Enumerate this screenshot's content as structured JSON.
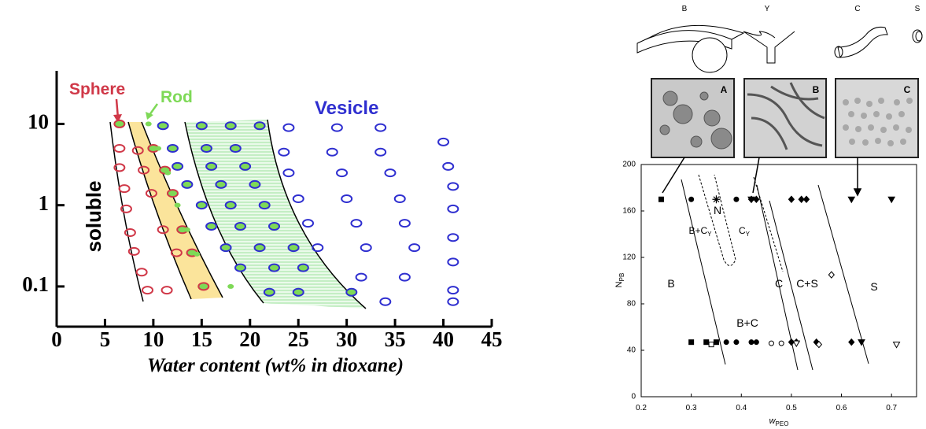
{
  "chart_data": [
    {
      "type": "scatter",
      "xlabel": "Water content (wt% in dioxane)",
      "xlim": [
        0,
        45
      ],
      "xticks": [
        0,
        5,
        10,
        15,
        20,
        25,
        30,
        35,
        40,
        45
      ],
      "ylim": [
        0.032,
        45
      ],
      "yticks": [
        0.1,
        1,
        10
      ],
      "yscale": "log",
      "annotations": [
        "Sphere",
        "Rod",
        "Vesicle",
        "soluble"
      ],
      "series": [
        {
          "color": "#d03848",
          "marker": "ellipse",
          "filled": false,
          "x": [
            6.5,
            6.5,
            7,
            7.2,
            7.6,
            8,
            8.8,
            9.4,
            11.4,
            8.4,
            9,
            9.8,
            11,
            12.4
          ],
          "y": [
            5,
            2.9,
            1.6,
            0.9,
            0.46,
            0.27,
            0.15,
            0.09,
            0.09,
            4.7,
            2.7,
            1.4,
            0.5,
            0.26
          ]
        },
        {
          "color": "#d03848",
          "fill": "#7ed957",
          "marker": "ellipse",
          "filled": true,
          "x": [
            6.5,
            10,
            11.2,
            12,
            13,
            14,
            15.2
          ],
          "y": [
            10,
            5,
            2.7,
            1.4,
            0.5,
            0.26,
            0.1
          ]
        },
        {
          "color": "#7ed957",
          "marker": "dot",
          "filled": true,
          "x": [
            9.5,
            10.5,
            11.5,
            12.5,
            13.5,
            14.5,
            18
          ],
          "y": [
            10,
            5,
            2.5,
            1,
            0.5,
            0.25,
            0.1
          ]
        },
        {
          "color": "#2f2fd0",
          "fill": "#7ed957",
          "marker": "ellipse",
          "filled": true,
          "x": [
            11,
            15,
            18,
            21,
            12,
            15.5,
            18.5,
            12.5,
            16,
            19.5,
            13.5,
            17,
            20.5,
            15,
            18,
            21.5,
            16,
            19,
            22.5,
            17.5,
            21,
            24.5,
            19,
            22.5,
            25.5,
            22,
            25,
            30.5
          ],
          "y": [
            9.5,
            9.5,
            9.5,
            9.5,
            5,
            5,
            5,
            3,
            3,
            3,
            1.8,
            1.8,
            1.8,
            1,
            1,
            1,
            0.55,
            0.55,
            0.55,
            0.3,
            0.3,
            0.3,
            0.17,
            0.17,
            0.17,
            0.085,
            0.085,
            0.085
          ]
        },
        {
          "color": "#2f2fd0",
          "marker": "ellipse",
          "filled": false,
          "x": [
            24,
            29,
            33.5,
            40,
            23.5,
            28.5,
            33.5,
            40.5,
            24,
            29.5,
            34.5,
            41,
            25,
            30,
            35.5,
            41,
            26,
            31,
            36,
            41,
            27,
            32,
            37,
            41,
            31.5,
            36,
            41,
            34,
            41
          ],
          "y": [
            9,
            9,
            9,
            6,
            4.5,
            4.5,
            4.5,
            3,
            2.5,
            2.5,
            2.5,
            1.7,
            1.2,
            1.2,
            1.2,
            0.9,
            0.6,
            0.6,
            0.6,
            0.4,
            0.3,
            0.3,
            0.3,
            0.2,
            0.13,
            0.13,
            0.09,
            0.065,
            0.065
          ]
        }
      ]
    },
    {
      "type": "scatter",
      "xlabel": {
        "text": "w",
        "sub": "PEO"
      },
      "ylabel": {
        "text": "N",
        "sub": "PB"
      },
      "xlim": [
        0.2,
        0.75
      ],
      "xticks": [
        0.2,
        0.3,
        0.4,
        0.5,
        0.6,
        0.7
      ],
      "ylim": [
        0,
        200
      ],
      "yticks": [
        0,
        40,
        80,
        120,
        160,
        200
      ],
      "schematics": [
        "B",
        "Y",
        "C",
        "S"
      ],
      "micrographs": [
        "A",
        "B",
        "C"
      ],
      "region_labels": [
        "B",
        "B+C",
        "C",
        "C+S",
        "S",
        "N"
      ],
      "subscripted_labels": [
        {
          "text": "B+C",
          "sub": "Y"
        },
        {
          "text": "C",
          "sub": "Y"
        }
      ],
      "series": [
        {
          "color": "#000000",
          "marker": "square",
          "filled": true,
          "x": [
            0.24,
            0.3,
            0.33,
            0.35
          ],
          "y": [
            170,
            47,
            47,
            47
          ]
        },
        {
          "color": "#000000",
          "marker": "square",
          "filled": false,
          "x": [
            0.34
          ],
          "y": [
            45
          ]
        },
        {
          "color": "#000000",
          "marker": "circle",
          "filled": true,
          "x": [
            0.3,
            0.39,
            0.37,
            0.39,
            0.42,
            0.43
          ],
          "y": [
            170,
            170,
            47,
            47,
            47,
            47
          ]
        },
        {
          "color": "#000000",
          "marker": "circle",
          "filled": false,
          "x": [
            0.46,
            0.48
          ],
          "y": [
            46,
            46
          ]
        },
        {
          "color": "#000000",
          "marker": "star",
          "filled": true,
          "x": [
            0.35
          ],
          "y": [
            170
          ]
        },
        {
          "color": "#000000",
          "marker": "diamond",
          "filled": true,
          "x": [
            0.42,
            0.43,
            0.5,
            0.52,
            0.53,
            0.5,
            0.51,
            0.55,
            0.62
          ],
          "y": [
            170,
            170,
            170,
            170,
            170,
            47,
            47,
            47,
            47
          ]
        },
        {
          "color": "#000000",
          "marker": "diamond",
          "filled": false,
          "x": [
            0.555,
            0.58
          ],
          "y": [
            45,
            105
          ]
        },
        {
          "color": "#000000",
          "marker": "triangle-down",
          "filled": true,
          "x": [
            0.42,
            0.62,
            0.7,
            0.64
          ],
          "y": [
            170,
            170,
            170,
            47
          ]
        },
        {
          "color": "#000000",
          "marker": "triangle-down",
          "filled": false,
          "x": [
            0.51,
            0.71
          ],
          "y": [
            46,
            45
          ]
        }
      ]
    }
  ]
}
